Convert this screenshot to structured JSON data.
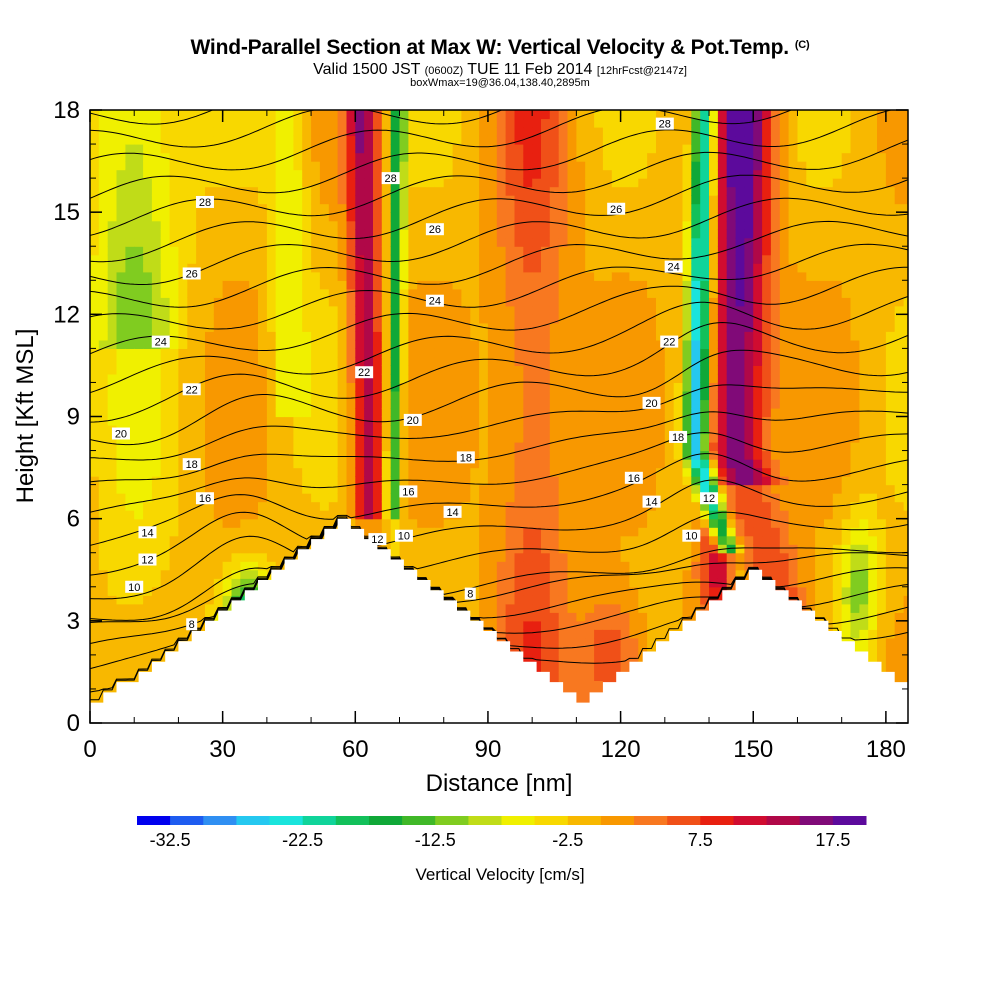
{
  "title": {
    "main": "Wind-Parallel Section at Max W: Vertical Velocity & Pot.Temp.",
    "copyright": "(C)",
    "valid": "Valid 1500 JST",
    "utc": "(0600Z)",
    "date": "TUE 11 Feb 2014",
    "forecast": "[12hrFcst@2147z]",
    "boxwmax": "boxWmax=19@36.04,138.40,2895m"
  },
  "chart_data": {
    "type": "heatmap",
    "xlabel": "Distance [nm]",
    "ylabel": "Height [Kft MSL]",
    "xlim": [
      0,
      185
    ],
    "ylim": [
      0,
      18
    ],
    "xticks": [
      "0",
      "30",
      "60",
      "90",
      "120",
      "150",
      "180"
    ],
    "yticks": [
      "0",
      "3",
      "6",
      "9",
      "12",
      "15",
      "18"
    ],
    "colorbar": {
      "label": "Vertical Velocity [cm/s]",
      "range": [
        -35,
        20
      ],
      "step": 2.5,
      "ticks": [
        "-32.5",
        "-22.5",
        "-12.5",
        "-2.5",
        "7.5",
        "17.5"
      ],
      "colors": [
        "#0000ee",
        "#1e5cf0",
        "#2f8ff2",
        "#25c8f0",
        "#1ae4dc",
        "#10d49a",
        "#12c05a",
        "#10a838",
        "#40b828",
        "#80cc20",
        "#c0dc18",
        "#f0f000",
        "#f8d800",
        "#f8b800",
        "#f89800",
        "#f87820",
        "#f05018",
        "#e82010",
        "#d00c30",
        "#b00848",
        "#800a78",
        "#5c0a9c"
      ]
    },
    "terrain": [
      [
        0,
        0.6
      ],
      [
        3,
        0.6
      ],
      [
        3,
        0.9
      ],
      [
        6,
        0.9
      ],
      [
        6,
        1.2
      ],
      [
        11,
        1.2
      ],
      [
        11,
        1.5
      ],
      [
        14,
        1.5
      ],
      [
        14,
        1.8
      ],
      [
        17,
        1.8
      ],
      [
        17,
        2.1
      ],
      [
        20,
        2.1
      ],
      [
        20,
        2.4
      ],
      [
        23,
        2.4
      ],
      [
        23,
        2.7
      ],
      [
        26,
        2.7
      ],
      [
        26,
        3.0
      ],
      [
        29,
        3.0
      ],
      [
        29,
        3.3
      ],
      [
        32,
        3.3
      ],
      [
        32,
        3.6
      ],
      [
        35,
        3.6
      ],
      [
        35,
        3.9
      ],
      [
        38,
        3.9
      ],
      [
        38,
        4.2
      ],
      [
        41,
        4.2
      ],
      [
        41,
        4.5
      ],
      [
        44,
        4.5
      ],
      [
        44,
        4.8
      ],
      [
        47,
        4.8
      ],
      [
        47,
        5.1
      ],
      [
        50,
        5.1
      ],
      [
        50,
        5.4
      ],
      [
        53,
        5.4
      ],
      [
        53,
        5.7
      ],
      [
        56,
        5.7
      ],
      [
        56,
        6.0
      ],
      [
        59,
        6.0
      ],
      [
        59,
        5.7
      ],
      [
        62,
        5.7
      ],
      [
        62,
        5.4
      ],
      [
        65,
        5.4
      ],
      [
        65,
        5.1
      ],
      [
        68,
        5.1
      ],
      [
        68,
        4.8
      ],
      [
        71,
        4.8
      ],
      [
        71,
        4.5
      ],
      [
        74,
        4.5
      ],
      [
        74,
        4.2
      ],
      [
        77,
        4.2
      ],
      [
        77,
        3.9
      ],
      [
        80,
        3.9
      ],
      [
        80,
        3.6
      ],
      [
        83,
        3.6
      ],
      [
        83,
        3.3
      ],
      [
        86,
        3.3
      ],
      [
        86,
        3.0
      ],
      [
        89,
        3.0
      ],
      [
        89,
        2.7
      ],
      [
        92,
        2.7
      ],
      [
        92,
        2.4
      ],
      [
        95,
        2.4
      ],
      [
        95,
        2.1
      ],
      [
        98,
        2.1
      ],
      [
        98,
        1.8
      ],
      [
        101,
        1.8
      ],
      [
        101,
        1.5
      ],
      [
        104,
        1.5
      ],
      [
        104,
        1.2
      ],
      [
        107,
        1.2
      ],
      [
        107,
        0.9
      ],
      [
        110,
        0.9
      ],
      [
        110,
        0.6
      ],
      [
        113,
        0.6
      ],
      [
        113,
        0.9
      ],
      [
        116,
        0.9
      ],
      [
        116,
        1.2
      ],
      [
        119,
        1.2
      ],
      [
        119,
        1.5
      ],
      [
        122,
        1.5
      ],
      [
        122,
        1.8
      ],
      [
        125,
        1.8
      ],
      [
        125,
        2.1
      ],
      [
        128,
        2.1
      ],
      [
        128,
        2.4
      ],
      [
        131,
        2.4
      ],
      [
        131,
        2.7
      ],
      [
        134,
        2.7
      ],
      [
        134,
        3.0
      ],
      [
        137,
        3.0
      ],
      [
        137,
        3.3
      ],
      [
        140,
        3.3
      ],
      [
        140,
        3.6
      ],
      [
        143,
        3.6
      ],
      [
        143,
        3.9
      ],
      [
        146,
        3.9
      ],
      [
        146,
        4.2
      ],
      [
        149,
        4.2
      ],
      [
        149,
        4.5
      ],
      [
        152,
        4.5
      ],
      [
        152,
        4.2
      ],
      [
        155,
        4.2
      ],
      [
        155,
        3.9
      ],
      [
        158,
        3.9
      ],
      [
        158,
        3.6
      ],
      [
        161,
        3.6
      ],
      [
        161,
        3.3
      ],
      [
        164,
        3.3
      ],
      [
        164,
        3.0
      ],
      [
        167,
        3.0
      ],
      [
        167,
        2.7
      ],
      [
        170,
        2.7
      ],
      [
        170,
        2.4
      ],
      [
        173,
        2.4
      ],
      [
        173,
        2.1
      ],
      [
        176,
        2.1
      ],
      [
        176,
        1.8
      ],
      [
        179,
        1.8
      ],
      [
        179,
        1.5
      ],
      [
        182,
        1.5
      ],
      [
        182,
        1.2
      ],
      [
        185,
        1.2
      ]
    ],
    "isentropes": {
      "levels": [
        4,
        5,
        6,
        7,
        8,
        9,
        10,
        11,
        12,
        13,
        14,
        15,
        16,
        17,
        18,
        19,
        20,
        21,
        22,
        23,
        24,
        25,
        26,
        27,
        28,
        29
      ],
      "labels": [
        {
          "text": "8",
          "x": 23,
          "y": 2.9
        },
        {
          "text": "10",
          "x": 10,
          "y": 4.0
        },
        {
          "text": "12",
          "x": 13,
          "y": 4.8
        },
        {
          "text": "14",
          "x": 13,
          "y": 5.6
        },
        {
          "text": "16",
          "x": 26,
          "y": 6.6
        },
        {
          "text": "18",
          "x": 23,
          "y": 7.6
        },
        {
          "text": "20",
          "x": 7,
          "y": 8.5
        },
        {
          "text": "22",
          "x": 23,
          "y": 9.8
        },
        {
          "text": "24",
          "x": 16,
          "y": 11.2
        },
        {
          "text": "26",
          "x": 23,
          "y": 13.2
        },
        {
          "text": "28",
          "x": 26,
          "y": 15.3
        },
        {
          "text": "28",
          "x": 68,
          "y": 16.0
        },
        {
          "text": "26",
          "x": 78,
          "y": 14.5
        },
        {
          "text": "24",
          "x": 78,
          "y": 12.4
        },
        {
          "text": "22",
          "x": 62,
          "y": 10.3
        },
        {
          "text": "20",
          "x": 73,
          "y": 8.9
        },
        {
          "text": "18",
          "x": 85,
          "y": 7.8
        },
        {
          "text": "16",
          "x": 72,
          "y": 6.8
        },
        {
          "text": "14",
          "x": 82,
          "y": 6.2
        },
        {
          "text": "12",
          "x": 65,
          "y": 5.4
        },
        {
          "text": "10",
          "x": 71,
          "y": 5.5
        },
        {
          "text": "8",
          "x": 86,
          "y": 3.8
        },
        {
          "text": "28",
          "x": 130,
          "y": 17.6
        },
        {
          "text": "26",
          "x": 119,
          "y": 15.1
        },
        {
          "text": "24",
          "x": 132,
          "y": 13.4
        },
        {
          "text": "22",
          "x": 131,
          "y": 11.2
        },
        {
          "text": "20",
          "x": 127,
          "y": 9.4
        },
        {
          "text": "18",
          "x": 133,
          "y": 8.4
        },
        {
          "text": "16",
          "x": 123,
          "y": 7.2
        },
        {
          "text": "14",
          "x": 127,
          "y": 6.5
        },
        {
          "text": "12",
          "x": 140,
          "y": 6.6
        },
        {
          "text": "10",
          "x": 136,
          "y": 5.5
        }
      ]
    }
  }
}
